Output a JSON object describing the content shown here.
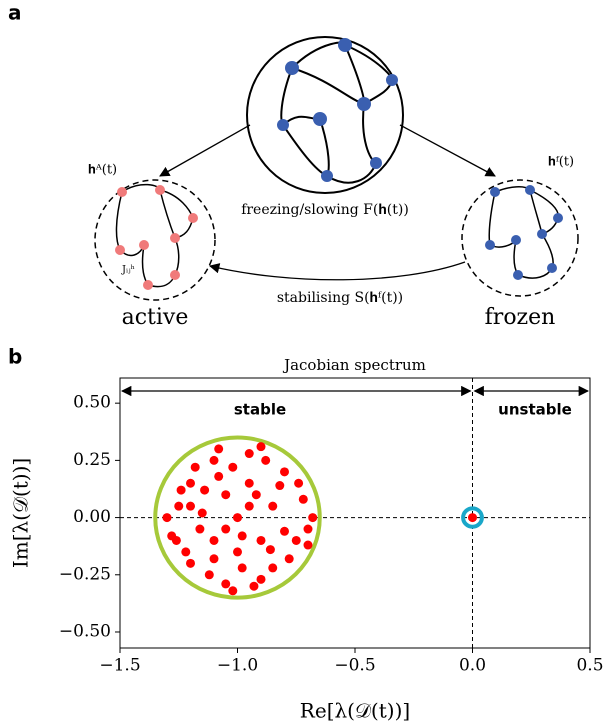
{
  "panel_a": {
    "label": "a",
    "center_caption": "freezing/slowing F(𝐡(t))",
    "active_state": "𝐡ᴬ(t)",
    "frozen_state": "𝐡ᶠ(t)",
    "coupling": "Jᵢⱼʰ",
    "return_caption": "stabilising S(𝐡ᶠ(t))",
    "active_label": "active",
    "frozen_label": "frozen"
  },
  "chart_data": {
    "type": "scatter",
    "panel_label": "b",
    "title": "Jacobian spectrum",
    "xlabel": "Re[λ(𝒟(t))]",
    "ylabel": "Im[λ(𝒟(t))]",
    "stable_label": "stable",
    "unstable_label": "unstable",
    "stability_boundary": 0,
    "xlim": [
      -1.5,
      0.5
    ],
    "ylim": [
      -0.57,
      0.61
    ],
    "xticks": [
      {
        "value": -1.5,
        "label": "−1.5"
      },
      {
        "value": -1.0,
        "label": "−1.0"
      },
      {
        "value": -0.5,
        "label": "−0.5"
      },
      {
        "value": 0,
        "label": "0.0"
      },
      0.5
    ],
    "yticks": [
      {
        "value": -0.5,
        "label": "−0.50"
      },
      {
        "value": -0.25,
        "label": "−0.25"
      },
      {
        "value": 0,
        "label": "0.00"
      },
      {
        "value": 0.25,
        "label": "0.25"
      },
      {
        "value": 0.5,
        "label": "0.50"
      }
    ],
    "color": "#ff0000",
    "x": [
      -1.25,
      -1.2,
      -1.1,
      -0.95,
      -0.8,
      -0.72,
      -0.7,
      -0.78,
      -0.9,
      -1.05,
      -1.2,
      -1.28,
      -1.15,
      -1.05,
      -0.95,
      -0.85,
      -0.9,
      -1.0,
      -1.1,
      -1.0,
      -1.18,
      -0.88,
      -0.75,
      -1.22,
      -1.02,
      -0.98,
      -1.3,
      -0.68,
      -1.12,
      -0.85,
      -1.08,
      -0.93,
      -0.82,
      -1.16,
      -1.05,
      -0.95,
      -1.24,
      -0.74,
      -0.8,
      -1.14,
      -0.92,
      -0.98,
      -1.08,
      -1.26,
      -0.7,
      -1.02,
      -0.9,
      -1.2,
      -0.86,
      -1.1,
      0
    ],
    "y": [
      0.05,
      0.15,
      0.25,
      0.28,
      0.2,
      0.08,
      -0.05,
      -0.18,
      -0.27,
      -0.29,
      -0.2,
      -0.08,
      0.02,
      0.1,
      0.15,
      0.05,
      -0.1,
      -0.15,
      -0.1,
      0,
      0.22,
      0.25,
      -0.1,
      -0.15,
      0.22,
      -0.22,
      0,
      0,
      -0.25,
      -0.22,
      0.3,
      -0.3,
      0.14,
      -0.05,
      -0.05,
      0.05,
      0.12,
      0.15,
      -0.06,
      0.12,
      0.1,
      -0.08,
      0.18,
      -0.1,
      -0.12,
      -0.32,
      0.31,
      0.05,
      -0.14,
      -0.18,
      0
    ],
    "circles": [
      {
        "cx": -1,
        "cy": 0,
        "r": 0.35,
        "color": "#a6c93a"
      },
      {
        "cx": 0,
        "cy": 0,
        "r": 0.04,
        "color": "#1aa7c9"
      }
    ]
  }
}
